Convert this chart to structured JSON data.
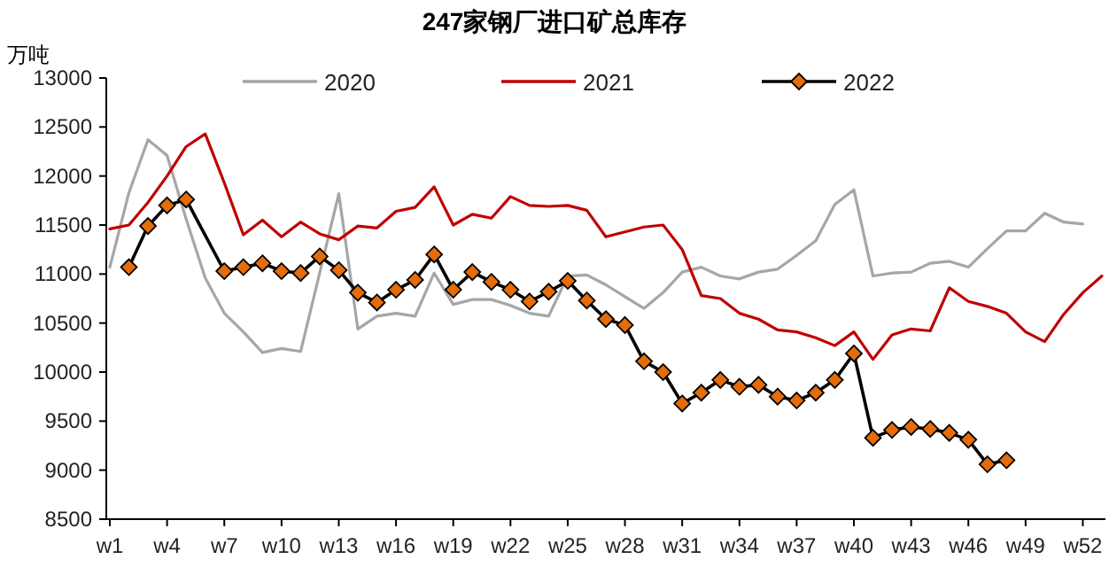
{
  "chart_data": {
    "type": "line",
    "title": "247家钢厂进口矿总库存",
    "ylabel": "万吨",
    "categories": [
      "w1",
      null,
      null,
      "w4",
      null,
      null,
      "w7",
      null,
      null,
      "w10",
      null,
      null,
      "w13",
      null,
      null,
      "w16",
      null,
      null,
      "w19",
      null,
      null,
      "w22",
      null,
      null,
      "w25",
      null,
      null,
      "w28",
      null,
      null,
      "w31",
      null,
      null,
      "w34",
      null,
      null,
      "w37",
      null,
      null,
      "w40",
      null,
      null,
      "w43",
      null,
      null,
      "w46",
      null,
      null,
      "w49",
      null,
      null,
      "w52",
      null
    ],
    "ylim": [
      8500,
      13000
    ],
    "yticks": [
      8500,
      9000,
      9500,
      10000,
      10500,
      11000,
      11500,
      12000,
      12500,
      13000
    ],
    "grid": false,
    "legend": "top",
    "series": [
      {
        "name": "2020",
        "color": "#a6a6a6",
        "marker": "none",
        "values": [
          11070,
          11830,
          12370,
          12210,
          11560,
          10960,
          10600,
          10410,
          10200,
          10240,
          10210,
          11010,
          11820,
          10440,
          10570,
          10600,
          10570,
          11010,
          10690,
          10740,
          10740,
          10680,
          10600,
          10570,
          10980,
          10990,
          10890,
          10770,
          10650,
          10810,
          11020,
          11070,
          10980,
          10950,
          11020,
          11050,
          11190,
          11340,
          11710,
          11860,
          10980,
          11010,
          11020,
          11110,
          11130,
          11070,
          11260,
          11440,
          11440,
          11620,
          11530,
          11510,
          null
        ]
      },
      {
        "name": "2021",
        "color": "#c00000",
        "marker": "none",
        "values": [
          11460,
          11500,
          11730,
          12000,
          12300,
          12430,
          11930,
          11400,
          11550,
          11380,
          11530,
          11410,
          11350,
          11490,
          11470,
          11640,
          11680,
          11890,
          11500,
          11610,
          11570,
          11790,
          11700,
          11690,
          11700,
          11650,
          11380,
          11430,
          11480,
          11500,
          11250,
          10780,
          10750,
          10600,
          10540,
          10430,
          10410,
          10350,
          10270,
          10410,
          10130,
          10380,
          10440,
          10420,
          10860,
          10720,
          10670,
          10600,
          10410,
          10310,
          10590,
          10810,
          10980
        ]
      },
      {
        "name": "2022",
        "color": "#000000",
        "marker": "diamond",
        "values": [
          null,
          11070,
          11490,
          11700,
          11760,
          null,
          11030,
          11070,
          11110,
          11030,
          11010,
          11180,
          11040,
          10810,
          10710,
          10840,
          10940,
          11200,
          10840,
          11020,
          10920,
          10840,
          10720,
          10820,
          10930,
          10730,
          10540,
          10480,
          10110,
          10000,
          9680,
          9790,
          9920,
          9850,
          9870,
          9750,
          9710,
          9790,
          9920,
          10190,
          9330,
          9410,
          9440,
          9420,
          9380,
          9310,
          9060,
          9100,
          null,
          null,
          null,
          null,
          null
        ]
      }
    ]
  }
}
